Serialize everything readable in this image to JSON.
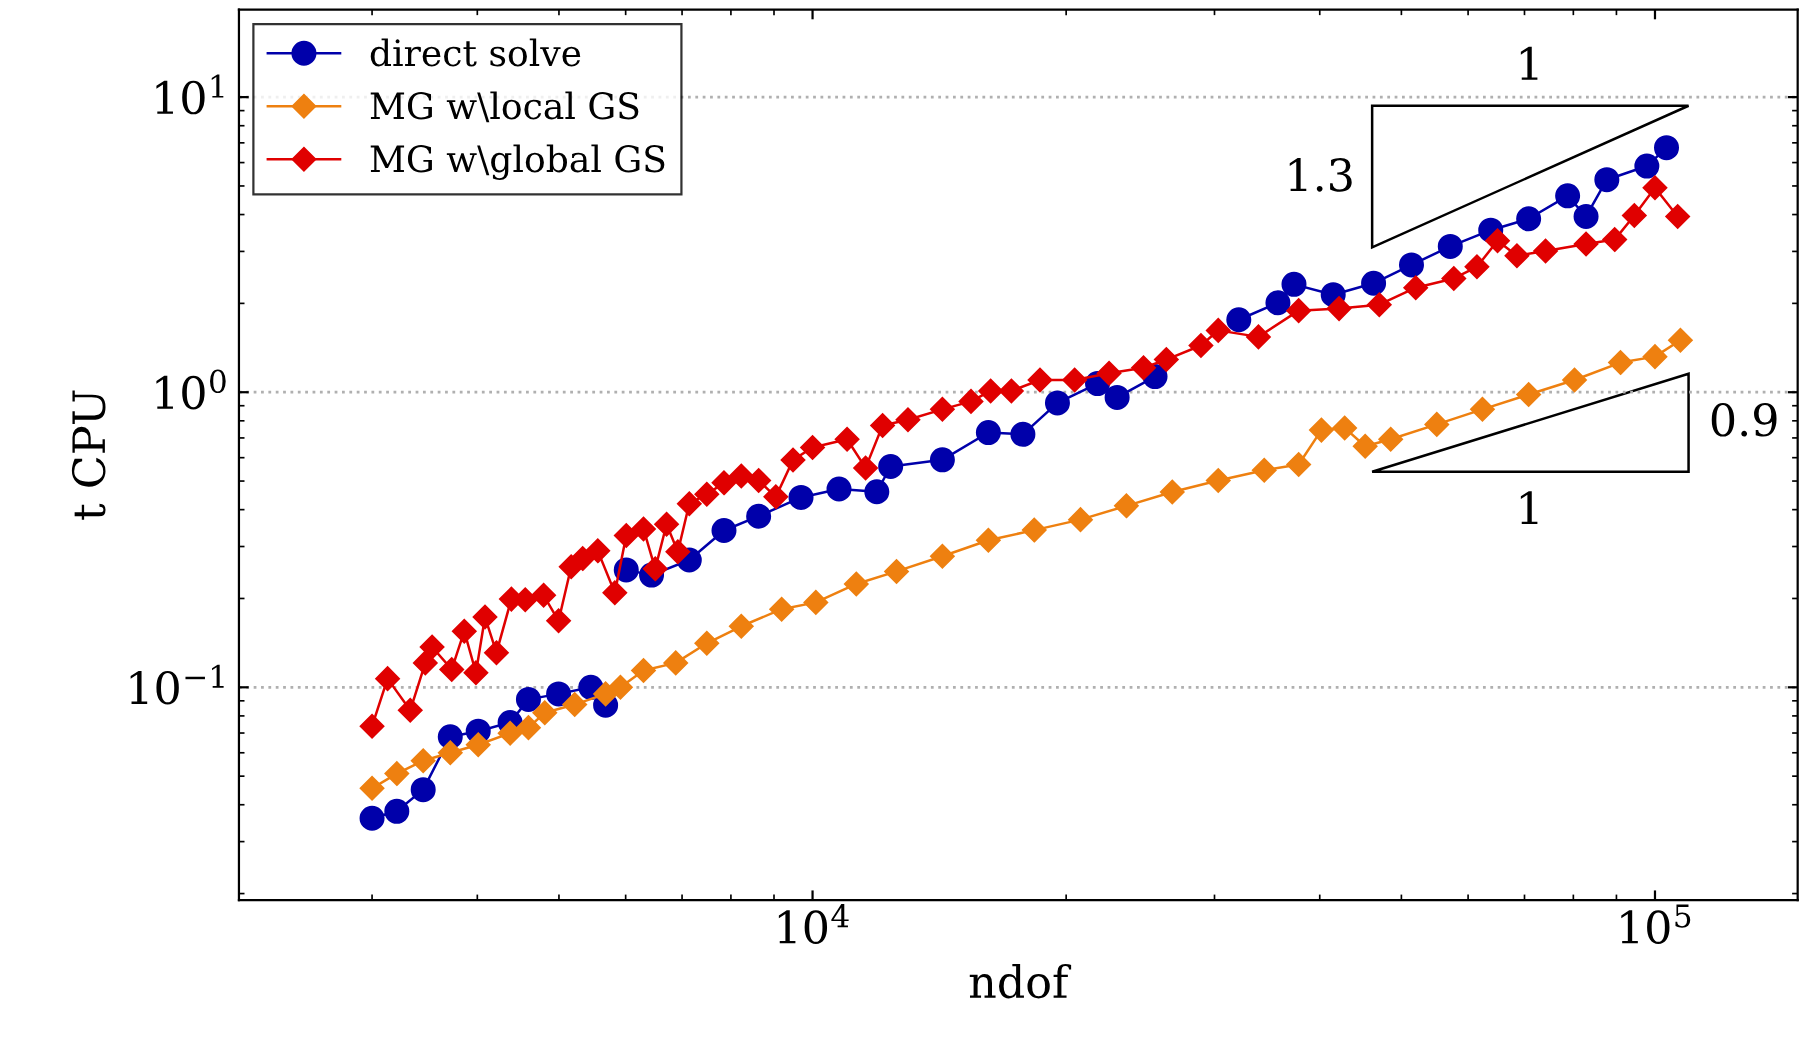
{
  "chart_data": {
    "type": "line",
    "xlabel": "ndof",
    "ylabel": "t CPU",
    "log": "xy",
    "grid": "y",
    "legend": "top left",
    "line_style": "solid",
    "xlim": [
      2085,
      147700
    ],
    "ylim": [
      0.019,
      19.8
    ],
    "xticks": [
      {
        "value": 10000,
        "label": "10$^{4}$"
      },
      {
        "value": 100000,
        "label": "10$^{5}$"
      }
    ],
    "yticks": [
      {
        "value": 0.1,
        "label": "10$^{−1}$"
      },
      {
        "value": 1,
        "label": "10$^{0}$"
      },
      {
        "value": 10,
        "label": "10$^{1}$"
      }
    ],
    "annotations": [
      "1",
      "1.3",
      "0.9",
      "1"
    ],
    "series": [
      {
        "name": "direct solve",
        "color": "#0000aa",
        "marker": "circle",
        "x": [
          3000,
          3210,
          3450,
          3715,
          4010,
          4375,
          4600,
          4995,
          5455,
          5680,
          5915,
          6010,
          6440,
          7140,
          7850,
          8630,
          9690,
          10750,
          11920,
          12380,
          14260,
          16170,
          17770,
          19530,
          21790,
          22990,
          25500,
          29380,
          32060,
          35680,
          37280,
          41500,
          46340,
          51400,
          57150,
          63830,
          70800,
          78760,
          82830,
          87670,
          97800,
          103200
        ],
        "values": [
          0.036,
          0.038,
          0.045,
          0.068,
          0.071,
          0.076,
          0.091,
          0.095,
          0.1,
          0.087,
          null,
          0.25,
          0.24,
          0.27,
          0.34,
          0.38,
          0.44,
          0.47,
          0.46,
          0.56,
          0.59,
          0.73,
          0.72,
          0.92,
          1.07,
          0.96,
          1.13,
          null,
          1.76,
          2.01,
          2.32,
          2.14,
          2.34,
          2.7,
          3.12,
          3.54,
          3.87,
          4.63,
          3.94,
          5.25,
          5.84,
          6.74
        ]
      },
      {
        "name": "MG w\\local GS",
        "color": "#ee8010",
        "marker": "diamond",
        "x": [
          3000,
          3210,
          3450,
          3715,
          4010,
          4375,
          4600,
          4810,
          5220,
          5680,
          5915,
          6300,
          6880,
          7490,
          8230,
          9190,
          10090,
          11270,
          12580,
          14260,
          16170,
          18330,
          20800,
          23580,
          26730,
          30310,
          34370,
          37760,
          40180,
          42820,
          45290,
          48560,
          55080,
          62400,
          70800,
          80260,
          91000,
          100000,
          107200
        ],
        "values": [
          0.0455,
          0.051,
          0.0564,
          0.06,
          0.0639,
          0.0699,
          0.073,
          0.082,
          0.0874,
          0.095,
          0.1,
          0.114,
          0.121,
          0.141,
          0.161,
          0.184,
          0.194,
          0.224,
          0.247,
          0.278,
          0.315,
          0.341,
          0.37,
          0.412,
          0.459,
          0.502,
          0.544,
          0.569,
          0.744,
          0.757,
          0.656,
          0.693,
          0.778,
          0.875,
          0.982,
          1.1,
          1.26,
          1.32,
          1.5
        ]
      },
      {
        "name": "MG w\\global GS",
        "color": "#e00000",
        "marker": "diamond",
        "x": [
          3000,
          3130,
          3330,
          3470,
          3535,
          3730,
          3860,
          3985,
          4085,
          4215,
          4390,
          4560,
          4795,
          4995,
          5170,
          5335,
          5560,
          5825,
          6010,
          6300,
          6505,
          6710,
          6920,
          7140,
          7490,
          7850,
          8230,
          8630,
          9045,
          9480,
          10000,
          10990,
          11560,
          12110,
          12980,
          14260,
          15420,
          16270,
          17220,
          18620,
          20470,
          22490,
          24710,
          26300,
          28910,
          30310,
          33830,
          37760,
          42170,
          47070,
          52000,
          57700,
          61470,
          65030,
          68570,
          74150,
          82830,
          89570,
          94510,
          100000,
          106400
        ],
        "values": [
          0.0738,
          0.107,
          0.0836,
          0.121,
          0.137,
          0.115,
          0.155,
          0.112,
          0.173,
          0.131,
          0.199,
          0.198,
          0.205,
          0.168,
          0.256,
          0.273,
          0.29,
          0.209,
          0.327,
          0.344,
          0.252,
          0.357,
          0.288,
          0.419,
          0.451,
          0.493,
          0.52,
          0.502,
          0.442,
          0.589,
          0.65,
          0.693,
          0.554,
          0.771,
          0.807,
          0.875,
          0.931,
          1.01,
          1.01,
          1.1,
          1.1,
          1.16,
          1.21,
          1.29,
          1.44,
          1.62,
          1.54,
          1.89,
          1.92,
          1.98,
          2.26,
          2.43,
          2.66,
          3.26,
          2.9,
          3.01,
          3.18,
          3.29,
          3.97,
          4.93,
          3.94
        ]
      }
    ]
  }
}
